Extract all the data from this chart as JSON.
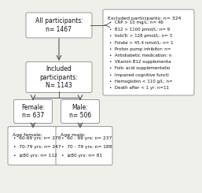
{
  "bg_color": "#f0f0eb",
  "box_color": "#ffffff",
  "box_edge": "#999999",
  "text_color": "#111111",
  "all_participants": "All participants:\nn= 1467",
  "included_participants": "Included\nparticipants:\nN= 1143",
  "female": "Female:\nn= 637",
  "male": "Male:\nn= 506",
  "excluded_title": "Excluded participants: n= 324",
  "excluded_items": [
    "CRP > 10 mg/L: n= 46",
    "B12 > 1100 pmol/L: n= 9",
    "holoTc > 128 pmol/L: n= 3",
    "Folate > 45.4 nmol/L: n= 1",
    "Proton pump inhibitor: n=",
    "Antidiabetic medication: n",
    "Vitamin B12 supplementa",
    "Folic acid supplementatio",
    "Impaired cognitive functi",
    "Hemoglobin < 110 g/L: n=",
    "Death after < 1 yr: n=11"
  ],
  "age_female_title": "Age female:",
  "age_female_items": [
    "60-69 yrs: n= 278",
    "70-79 yrs: n= 247",
    "≥80 yrs: n= 112"
  ],
  "age_male_title": "Age male:",
  "age_male_items": [
    "60 - 69 yrs: n= 237",
    "70 - 79 yrs: n= 188",
    "≥80 yrs: n= 81"
  ],
  "arrow_color": "#555555",
  "line_color": "#555555"
}
